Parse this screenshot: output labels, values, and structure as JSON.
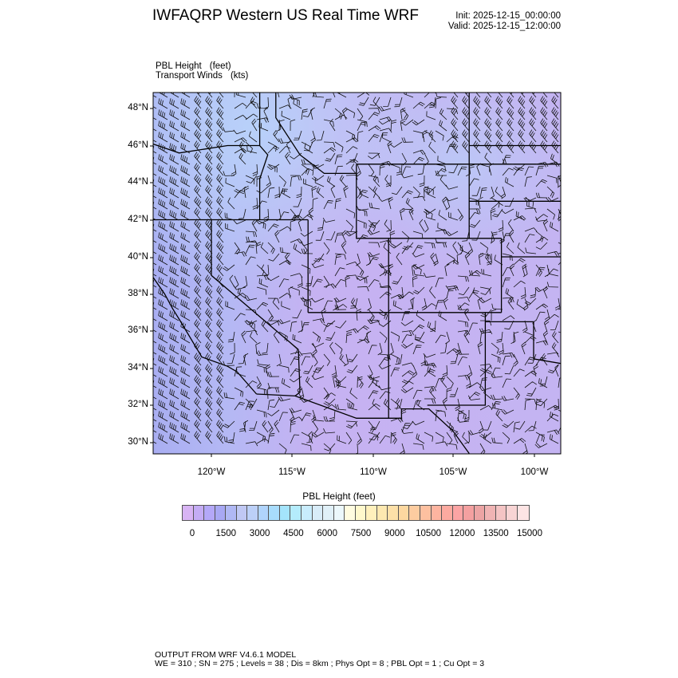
{
  "header": {
    "title": "IWFAQRP Western US Real Time WRF",
    "init": "Init: 2025-12-15_00:00:00",
    "valid": "Valid: 2025-12-15_12:00:00"
  },
  "subtitle": {
    "field1_name": "PBL Height",
    "field1_unit": "(feet)",
    "field2_name": "Transport Winds",
    "field2_unit": "(kts)"
  },
  "map": {
    "lat_labels": [
      "48°N",
      "46°N",
      "44°N",
      "42°N",
      "40°N",
      "38°N",
      "36°N",
      "34°N",
      "32°N",
      "30°N"
    ],
    "lon_labels": [
      "120°W",
      "115°W",
      "110°W",
      "105°W",
      "100°W"
    ],
    "fill_colors": {
      "ocean": "#a9aef2",
      "northwest": "#b8d4fa",
      "interior": "#c6b2f2"
    }
  },
  "colorbar": {
    "title": "PBL Height  (feet)",
    "labels": [
      "0",
      "1500",
      "3000",
      "4500",
      "6000",
      "7500",
      "9000",
      "10500",
      "12000",
      "13500",
      "15000"
    ],
    "colors": [
      "#d8b4f4",
      "#c4acf4",
      "#b4a8f8",
      "#a8a8f4",
      "#b0b8f4",
      "#c0c8f4",
      "#bcd0f8",
      "#b0d4fc",
      "#a8dcfc",
      "#a4e4fc",
      "#b4ecfc",
      "#c8ecfc",
      "#d8ecf8",
      "#e0f0f8",
      "#ecf8fc",
      "#fffce0",
      "#fff8cc",
      "#fff0bc",
      "#fde8b0",
      "#fde0a8",
      "#fdd8a0",
      "#fdcca0",
      "#fdc0a0",
      "#fdb4a0",
      "#fcaaa0",
      "#fca4a4",
      "#f4a0a0",
      "#eca4a4",
      "#f0b4b4",
      "#f4c4c4",
      "#f8d4d4",
      "#fde4e4"
    ]
  },
  "footer": {
    "line1": "OUTPUT FROM WRF V4.6.1 MODEL",
    "line2": "WE = 310 ; SN = 275 ; Levels = 38 ; Dis = 8km ; Phys Opt = 8 ; PBL Opt = 1 ; Cu Opt = 3"
  }
}
